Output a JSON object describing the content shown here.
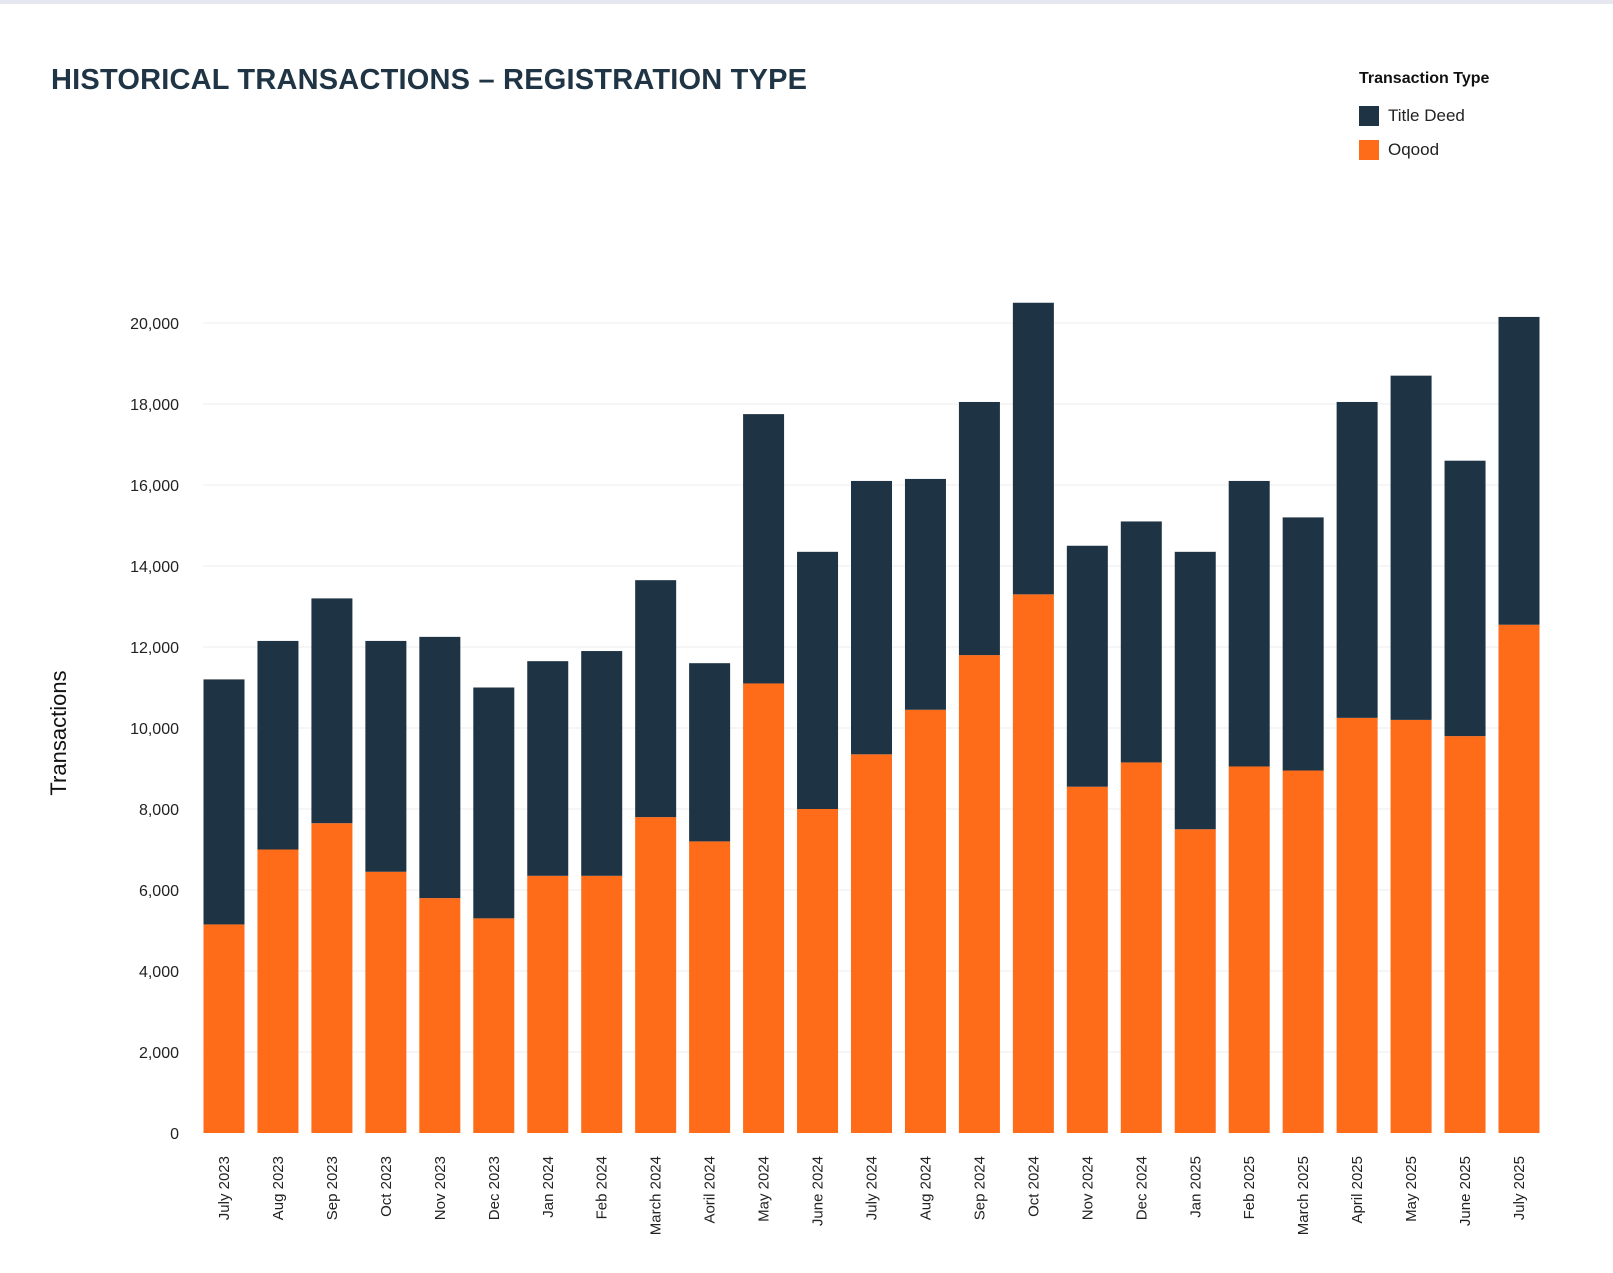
{
  "colors": {
    "title_deed": "#1e3343",
    "oqood": "#fe6b19",
    "title_text": "#1f3444",
    "grid": "#ececec",
    "axis_text": "#222222"
  },
  "legend": {
    "title": "Transaction Type",
    "items": [
      {
        "label": "Title Deed",
        "color": "#1e3343"
      },
      {
        "label": "Oqood",
        "color": "#fe6b19"
      }
    ]
  },
  "chart_data": {
    "type": "bar",
    "stacked": true,
    "title": "HISTORICAL TRANSACTIONS – REGISTRATION TYPE",
    "xlabel": "",
    "ylabel": "Transactions",
    "ylim": [
      0,
      20500
    ],
    "yticks": [
      0,
      2000,
      4000,
      6000,
      8000,
      10000,
      12000,
      14000,
      16000,
      18000,
      20000
    ],
    "ytick_labels": [
      "0",
      "2,000",
      "4,000",
      "6,000",
      "8,000",
      "10,000",
      "12,000",
      "14,000",
      "16,000",
      "18,000",
      "20,000"
    ],
    "grid": true,
    "legend_position": "top-right",
    "categories": [
      "July 2023",
      "Aug 2023",
      "Sep 2023",
      "Oct 2023",
      "Nov 2023",
      "Dec 2023",
      "Jan 2024",
      "Feb 2024",
      "March 2024",
      "Aoril 2024",
      "May 2024",
      "June 2024",
      "July 2024",
      "Aug 2024",
      "Sep 2024",
      "Oct 2024",
      "Nov 2024",
      "Dec 2024",
      "Jan 2025",
      "Feb 2025",
      "March 2025",
      "April 2025",
      "May 2025",
      "June 2025",
      "July 2025"
    ],
    "series": [
      {
        "name": "Oqood",
        "values": [
          5150,
          7000,
          7650,
          6450,
          5800,
          5300,
          6350,
          6350,
          7800,
          7200,
          11100,
          8000,
          9350,
          10450,
          11800,
          13300,
          8550,
          9150,
          7500,
          9050,
          8950,
          10250,
          10200,
          9800,
          12550
        ]
      },
      {
        "name": "Title Deed",
        "values": [
          6050,
          5150,
          5550,
          5700,
          6450,
          5700,
          5300,
          5550,
          5850,
          4400,
          6650,
          6350,
          6750,
          5700,
          6250,
          7200,
          5950,
          5950,
          6850,
          7050,
          6250,
          7800,
          8500,
          6800,
          7600
        ]
      }
    ]
  }
}
